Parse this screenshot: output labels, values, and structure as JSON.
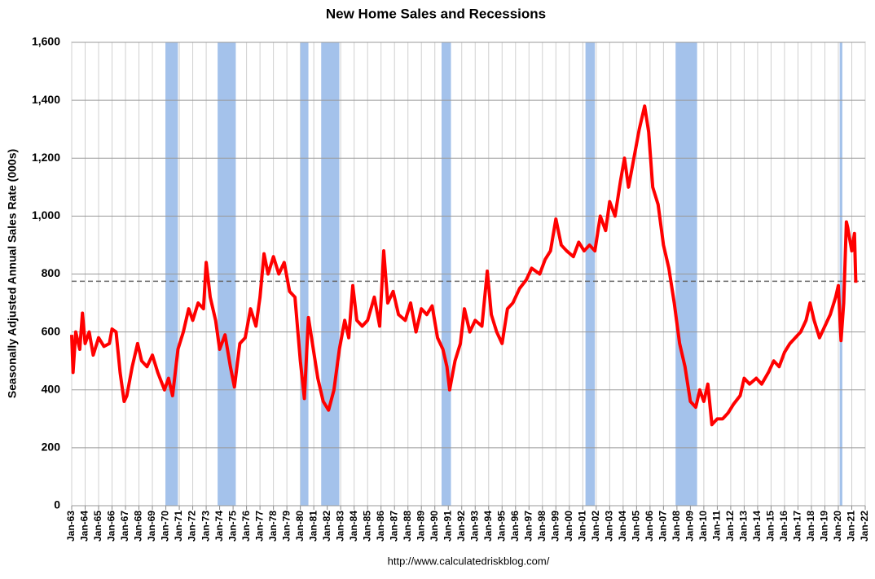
{
  "chart_data": {
    "type": "line",
    "title": "New Home Sales and Recessions",
    "y_label": "Seasonally Adjusted Annual Sales Rate (000s)",
    "source": "http://www.calculatedriskblog.com/",
    "color": "#ff0000",
    "recession_color": "#a4c2eb",
    "grid": true,
    "reference_line": 775,
    "xlim": [
      1963,
      2022
    ],
    "ylim": [
      0,
      1600
    ],
    "yticks": [
      0,
      {
        "value": 200,
        "label": "200"
      },
      {
        "value": 400,
        "label": "400"
      },
      {
        "value": 600,
        "label": "600"
      },
      {
        "value": 800,
        "label": "800"
      },
      {
        "value": 1000,
        "label": "1,000"
      },
      {
        "value": 1200,
        "label": "1,200"
      },
      {
        "value": 1400,
        "label": "1,400"
      },
      {
        "value": 1600,
        "label": "1,600"
      }
    ],
    "xticks": [
      {
        "value": 1963,
        "label": "Jan-63"
      },
      {
        "value": 1964,
        "label": "Jan-64"
      },
      {
        "value": 1965,
        "label": "Jan-65"
      },
      {
        "value": 1966,
        "label": "Jan-66"
      },
      {
        "value": 1967,
        "label": "Jan-67"
      },
      {
        "value": 1968,
        "label": "Jan-68"
      },
      {
        "value": 1969,
        "label": "Jan-69"
      },
      {
        "value": 1970,
        "label": "Jan-70"
      },
      {
        "value": 1971,
        "label": "Jan-71"
      },
      {
        "value": 1972,
        "label": "Jan-72"
      },
      {
        "value": 1973,
        "label": "Jan-73"
      },
      {
        "value": 1974,
        "label": "Jan-74"
      },
      {
        "value": 1975,
        "label": "Jan-75"
      },
      {
        "value": 1976,
        "label": "Jan-76"
      },
      {
        "value": 1977,
        "label": "Jan-77"
      },
      {
        "value": 1978,
        "label": "Jan-78"
      },
      {
        "value": 1979,
        "label": "Jan-79"
      },
      {
        "value": 1980,
        "label": "Jan-80"
      },
      {
        "value": 1981,
        "label": "Jan-81"
      },
      {
        "value": 1982,
        "label": "Jan-82"
      },
      {
        "value": 1983,
        "label": "Jan-83"
      },
      {
        "value": 1984,
        "label": "Jan-84"
      },
      {
        "value": 1985,
        "label": "Jan-85"
      },
      {
        "value": 1986,
        "label": "Jan-86"
      },
      {
        "value": 1987,
        "label": "Jan-87"
      },
      {
        "value": 1988,
        "label": "Jan-88"
      },
      {
        "value": 1989,
        "label": "Jan-89"
      },
      {
        "value": 1990,
        "label": "Jan-90"
      },
      {
        "value": 1991,
        "label": "Jan-91"
      },
      {
        "value": 1992,
        "label": "Jan-92"
      },
      {
        "value": 1993,
        "label": "Jan-93"
      },
      {
        "value": 1994,
        "label": "Jan-94"
      },
      {
        "value": 1995,
        "label": "Jan-95"
      },
      {
        "value": 1996,
        "label": "Jan-96"
      },
      {
        "value": 1997,
        "label": "Jan-97"
      },
      {
        "value": 1998,
        "label": "Jan-98"
      },
      {
        "value": 1999,
        "label": "Jan-99"
      },
      {
        "value": 2000,
        "label": "Jan-00"
      },
      {
        "value": 2001,
        "label": "Jan-01"
      },
      {
        "value": 2002,
        "label": "Jan-02"
      },
      {
        "value": 2003,
        "label": "Jan-03"
      },
      {
        "value": 2004,
        "label": "Jan-04"
      },
      {
        "value": 2005,
        "label": "Jan-05"
      },
      {
        "value": 2006,
        "label": "Jan-06"
      },
      {
        "value": 2007,
        "label": "Jan-07"
      },
      {
        "value": 2008,
        "label": "Jan-08"
      },
      {
        "value": 2009,
        "label": "Jan-09"
      },
      {
        "value": 2010,
        "label": "Jan-10"
      },
      {
        "value": 2011,
        "label": "Jan-11"
      },
      {
        "value": 2012,
        "label": "Jan-12"
      },
      {
        "value": 2013,
        "label": "Jan-13"
      },
      {
        "value": 2014,
        "label": "Jan-14"
      },
      {
        "value": 2015,
        "label": "Jan-15"
      },
      {
        "value": 2016,
        "label": "Jan-16"
      },
      {
        "value": 2017,
        "label": "Jan-17"
      },
      {
        "value": 2018,
        "label": "Jan-18"
      },
      {
        "value": 2019,
        "label": "Jan-19"
      },
      {
        "value": 2020,
        "label": "Jan-20"
      },
      {
        "value": 2021,
        "label": "Jan-21"
      },
      {
        "value": 2022,
        "label": "Jan-22"
      }
    ],
    "recessions": [
      [
        1969.97,
        1970.9
      ],
      [
        1973.85,
        1975.2
      ],
      [
        1980.0,
        1980.6
      ],
      [
        1981.55,
        1982.9
      ],
      [
        1990.5,
        1991.2
      ],
      [
        2001.2,
        2001.9
      ],
      [
        2007.9,
        2009.5
      ],
      [
        2020.1,
        2020.3
      ]
    ],
    "x": [
      1963.0,
      1963.1,
      1963.3,
      1963.6,
      1963.8,
      1964.0,
      1964.3,
      1964.6,
      1965.0,
      1965.4,
      1965.8,
      1966.0,
      1966.3,
      1966.6,
      1966.9,
      1967.1,
      1967.5,
      1967.9,
      1968.2,
      1968.6,
      1969.0,
      1969.4,
      1969.9,
      1970.2,
      1970.5,
      1970.9,
      1971.3,
      1971.7,
      1972.0,
      1972.4,
      1972.8,
      1973.0,
      1973.3,
      1973.7,
      1974.0,
      1974.4,
      1974.8,
      1975.1,
      1975.5,
      1975.9,
      1976.3,
      1976.7,
      1977.0,
      1977.3,
      1977.6,
      1978.0,
      1978.4,
      1978.8,
      1979.2,
      1979.6,
      1980.0,
      1980.3,
      1980.6,
      1980.9,
      1981.3,
      1981.7,
      1982.1,
      1982.5,
      1982.9,
      1983.3,
      1983.6,
      1983.9,
      1984.2,
      1984.6,
      1985.0,
      1985.5,
      1985.9,
      1986.2,
      1986.5,
      1986.9,
      1987.3,
      1987.8,
      1988.2,
      1988.6,
      1989.0,
      1989.4,
      1989.8,
      1990.2,
      1990.6,
      1990.9,
      1991.1,
      1991.5,
      1991.9,
      1992.2,
      1992.6,
      1993.0,
      1993.5,
      1993.9,
      1994.2,
      1994.6,
      1995.0,
      1995.4,
      1995.8,
      1996.3,
      1996.8,
      1997.2,
      1997.8,
      1998.2,
      1998.6,
      1999.0,
      1999.4,
      1999.8,
      2000.3,
      2000.7,
      2001.1,
      2001.5,
      2001.9,
      2002.3,
      2002.7,
      2003.0,
      2003.4,
      2003.8,
      2004.1,
      2004.4,
      2004.8,
      2005.2,
      2005.6,
      2005.9,
      2006.2,
      2006.6,
      2007.0,
      2007.4,
      2007.8,
      2008.2,
      2008.6,
      2009.0,
      2009.4,
      2009.7,
      2010.0,
      2010.3,
      2010.6,
      2011.0,
      2011.4,
      2011.8,
      2012.2,
      2012.7,
      2013.0,
      2013.4,
      2013.9,
      2014.3,
      2014.8,
      2015.2,
      2015.6,
      2016.0,
      2016.4,
      2016.8,
      2017.2,
      2017.6,
      2017.9,
      2018.2,
      2018.6,
      2019.0,
      2019.4,
      2019.8,
      2020.0,
      2020.2,
      2020.4,
      2020.6,
      2020.7,
      2021.0,
      2021.2,
      2021.3
    ],
    "values": [
      590,
      460,
      600,
      540,
      665,
      560,
      600,
      520,
      580,
      550,
      560,
      610,
      600,
      460,
      360,
      380,
      480,
      560,
      500,
      480,
      520,
      460,
      400,
      440,
      380,
      540,
      600,
      680,
      640,
      700,
      680,
      840,
      720,
      640,
      540,
      590,
      480,
      410,
      560,
      580,
      680,
      620,
      720,
      870,
      800,
      860,
      800,
      840,
      740,
      720,
      500,
      370,
      650,
      560,
      440,
      360,
      330,
      400,
      540,
      640,
      580,
      760,
      640,
      620,
      640,
      720,
      620,
      880,
      700,
      740,
      660,
      640,
      700,
      600,
      680,
      660,
      690,
      580,
      540,
      480,
      400,
      500,
      560,
      680,
      600,
      640,
      620,
      810,
      660,
      600,
      560,
      680,
      700,
      750,
      780,
      820,
      800,
      850,
      880,
      990,
      900,
      880,
      860,
      910,
      880,
      900,
      880,
      1000,
      950,
      1050,
      1000,
      1120,
      1200,
      1100,
      1200,
      1300,
      1380,
      1290,
      1100,
      1040,
      900,
      820,
      700,
      560,
      480,
      360,
      340,
      400,
      360,
      420,
      280,
      300,
      300,
      320,
      350,
      380,
      440,
      420,
      440,
      420,
      460,
      500,
      480,
      530,
      560,
      580,
      600,
      640,
      700,
      640,
      580,
      620,
      660,
      720,
      760,
      570,
      700,
      980,
      960,
      880,
      940,
      770
    ]
  }
}
